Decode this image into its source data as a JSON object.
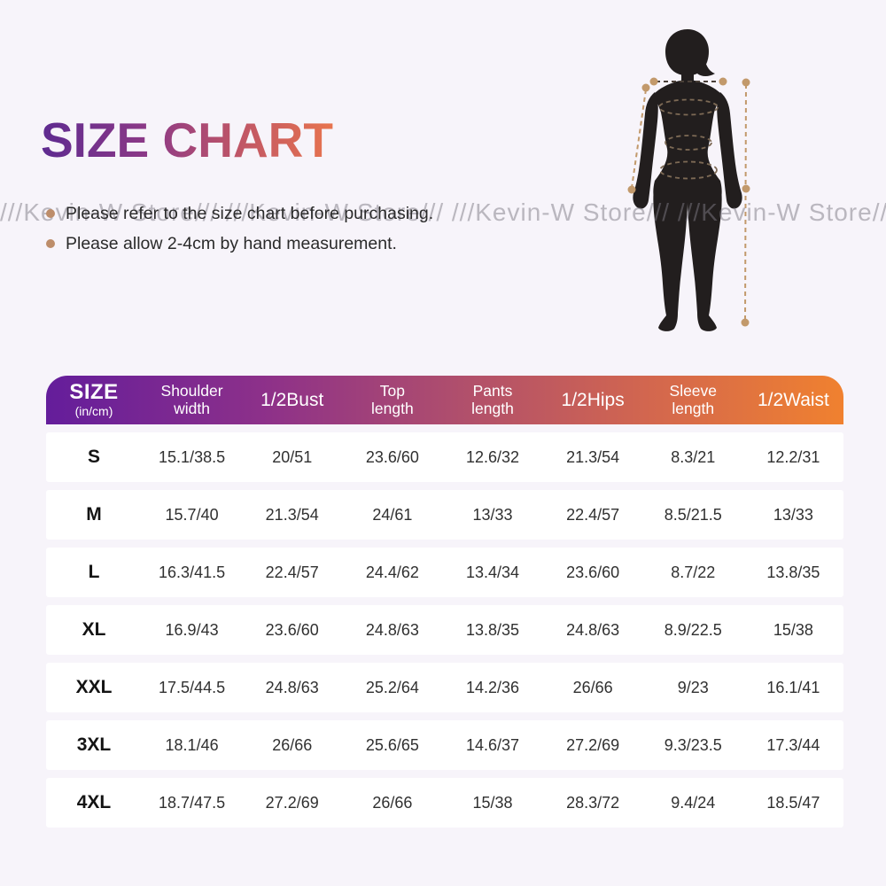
{
  "page": {
    "background": "#f7f4fa"
  },
  "title": {
    "text": "SIZE CHART",
    "gradient_start": "#5e2a90",
    "gradient_end": "#e8744e"
  },
  "notes": [
    {
      "text": "Please refer to the size chart before purchasing."
    },
    {
      "text": "Please allow 2-4cm by hand measurement."
    }
  ],
  "note_bullet_color": "#bd8d6a",
  "watermark": {
    "text": "///Kevin-W Store///",
    "repeat": 4
  },
  "figure": {
    "name": "female-body-silhouette-with-measurement-lines",
    "body_color": "#221e1e",
    "measure_line_color": "#c2996b",
    "girth_line_color": "#7d6a55"
  },
  "chart_data": {
    "type": "table",
    "title": "SIZE CHART",
    "unit_note": "(in/cm)",
    "header_gradient": [
      "#641d9b",
      "#8e3189",
      "#b04f6c",
      "#d3674e",
      "#f0812f"
    ],
    "columns": [
      {
        "label": "SIZE",
        "sub": "(in/cm)"
      },
      {
        "label": "Shoulder",
        "sub": "width"
      },
      {
        "label": "1/2Bust"
      },
      {
        "label": "Top",
        "sub": "length"
      },
      {
        "label": "Pants",
        "sub": "length"
      },
      {
        "label": "1/2Hips"
      },
      {
        "label": "Sleeve",
        "sub": "length"
      },
      {
        "label": "1/2Waist"
      }
    ],
    "rows": [
      {
        "size": "S",
        "values": [
          "15.1/38.5",
          "20/51",
          "23.6/60",
          "12.6/32",
          "21.3/54",
          "8.3/21",
          "12.2/31"
        ]
      },
      {
        "size": "M",
        "values": [
          "15.7/40",
          "21.3/54",
          "24/61",
          "13/33",
          "22.4/57",
          "8.5/21.5",
          "13/33"
        ]
      },
      {
        "size": "L",
        "values": [
          "16.3/41.5",
          "22.4/57",
          "24.4/62",
          "13.4/34",
          "23.6/60",
          "8.7/22",
          "13.8/35"
        ]
      },
      {
        "size": "XL",
        "values": [
          "16.9/43",
          "23.6/60",
          "24.8/63",
          "13.8/35",
          "24.8/63",
          "8.9/22.5",
          "15/38"
        ]
      },
      {
        "size": "XXL",
        "values": [
          "17.5/44.5",
          "24.8/63",
          "25.2/64",
          "14.2/36",
          "26/66",
          "9/23",
          "16.1/41"
        ]
      },
      {
        "size": "3XL",
        "values": [
          "18.1/46",
          "26/66",
          "25.6/65",
          "14.6/37",
          "27.2/69",
          "9.3/23.5",
          "17.3/44"
        ]
      },
      {
        "size": "4XL",
        "values": [
          "18.7/47.5",
          "27.2/69",
          "26/66",
          "15/38",
          "28.3/72",
          "9.4/24",
          "18.5/47"
        ]
      }
    ]
  }
}
